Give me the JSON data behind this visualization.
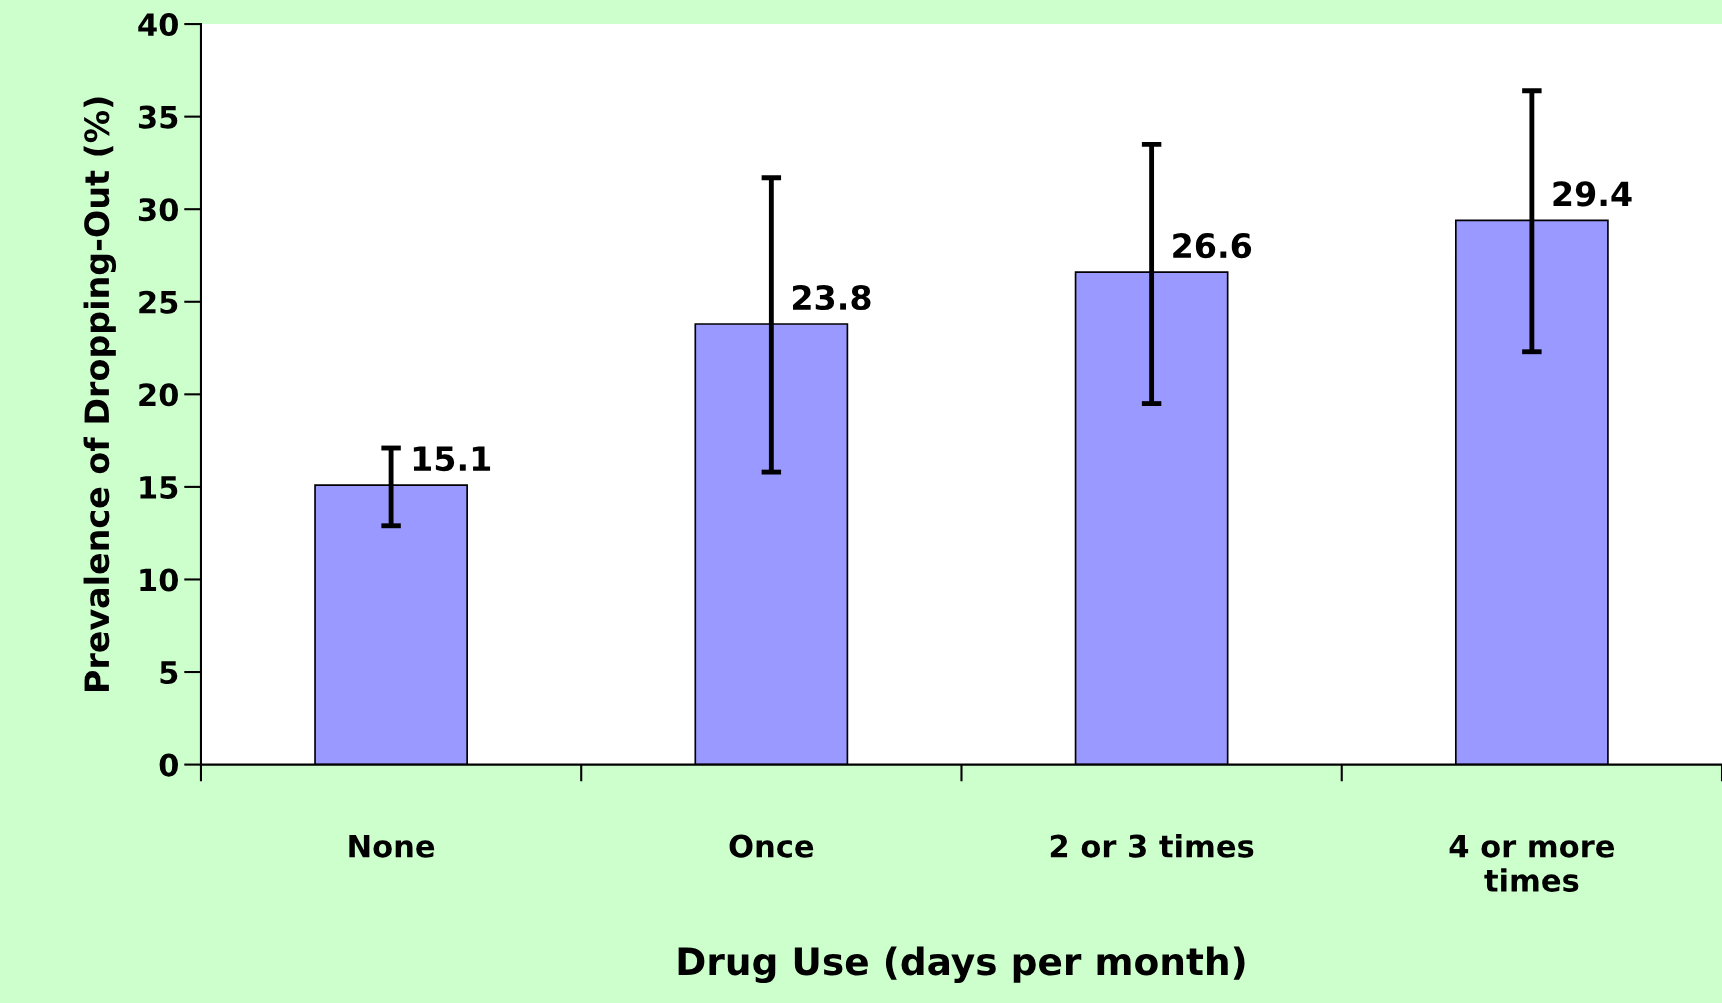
{
  "chart_data": {
    "type": "bar",
    "xlabel": "Drug Use (days per month)",
    "ylabel": "Prevalence of Dropping-Out (%)",
    "categories": [
      "None",
      "Once",
      "2 or 3 times",
      "4 or more\ntimes"
    ],
    "values": [
      15.1,
      23.8,
      26.6,
      29.4
    ],
    "errors": [
      [
        12.9,
        17.1
      ],
      [
        15.8,
        31.7
      ],
      [
        19.5,
        33.5
      ],
      [
        22.3,
        36.4
      ]
    ],
    "color": "#9999ff",
    "data_labels": true,
    "grid": false,
    "legend": false,
    "ylim": [
      0,
      40
    ],
    "yticks": [
      0,
      5,
      10,
      15,
      20,
      25,
      30,
      35,
      40
    ]
  }
}
